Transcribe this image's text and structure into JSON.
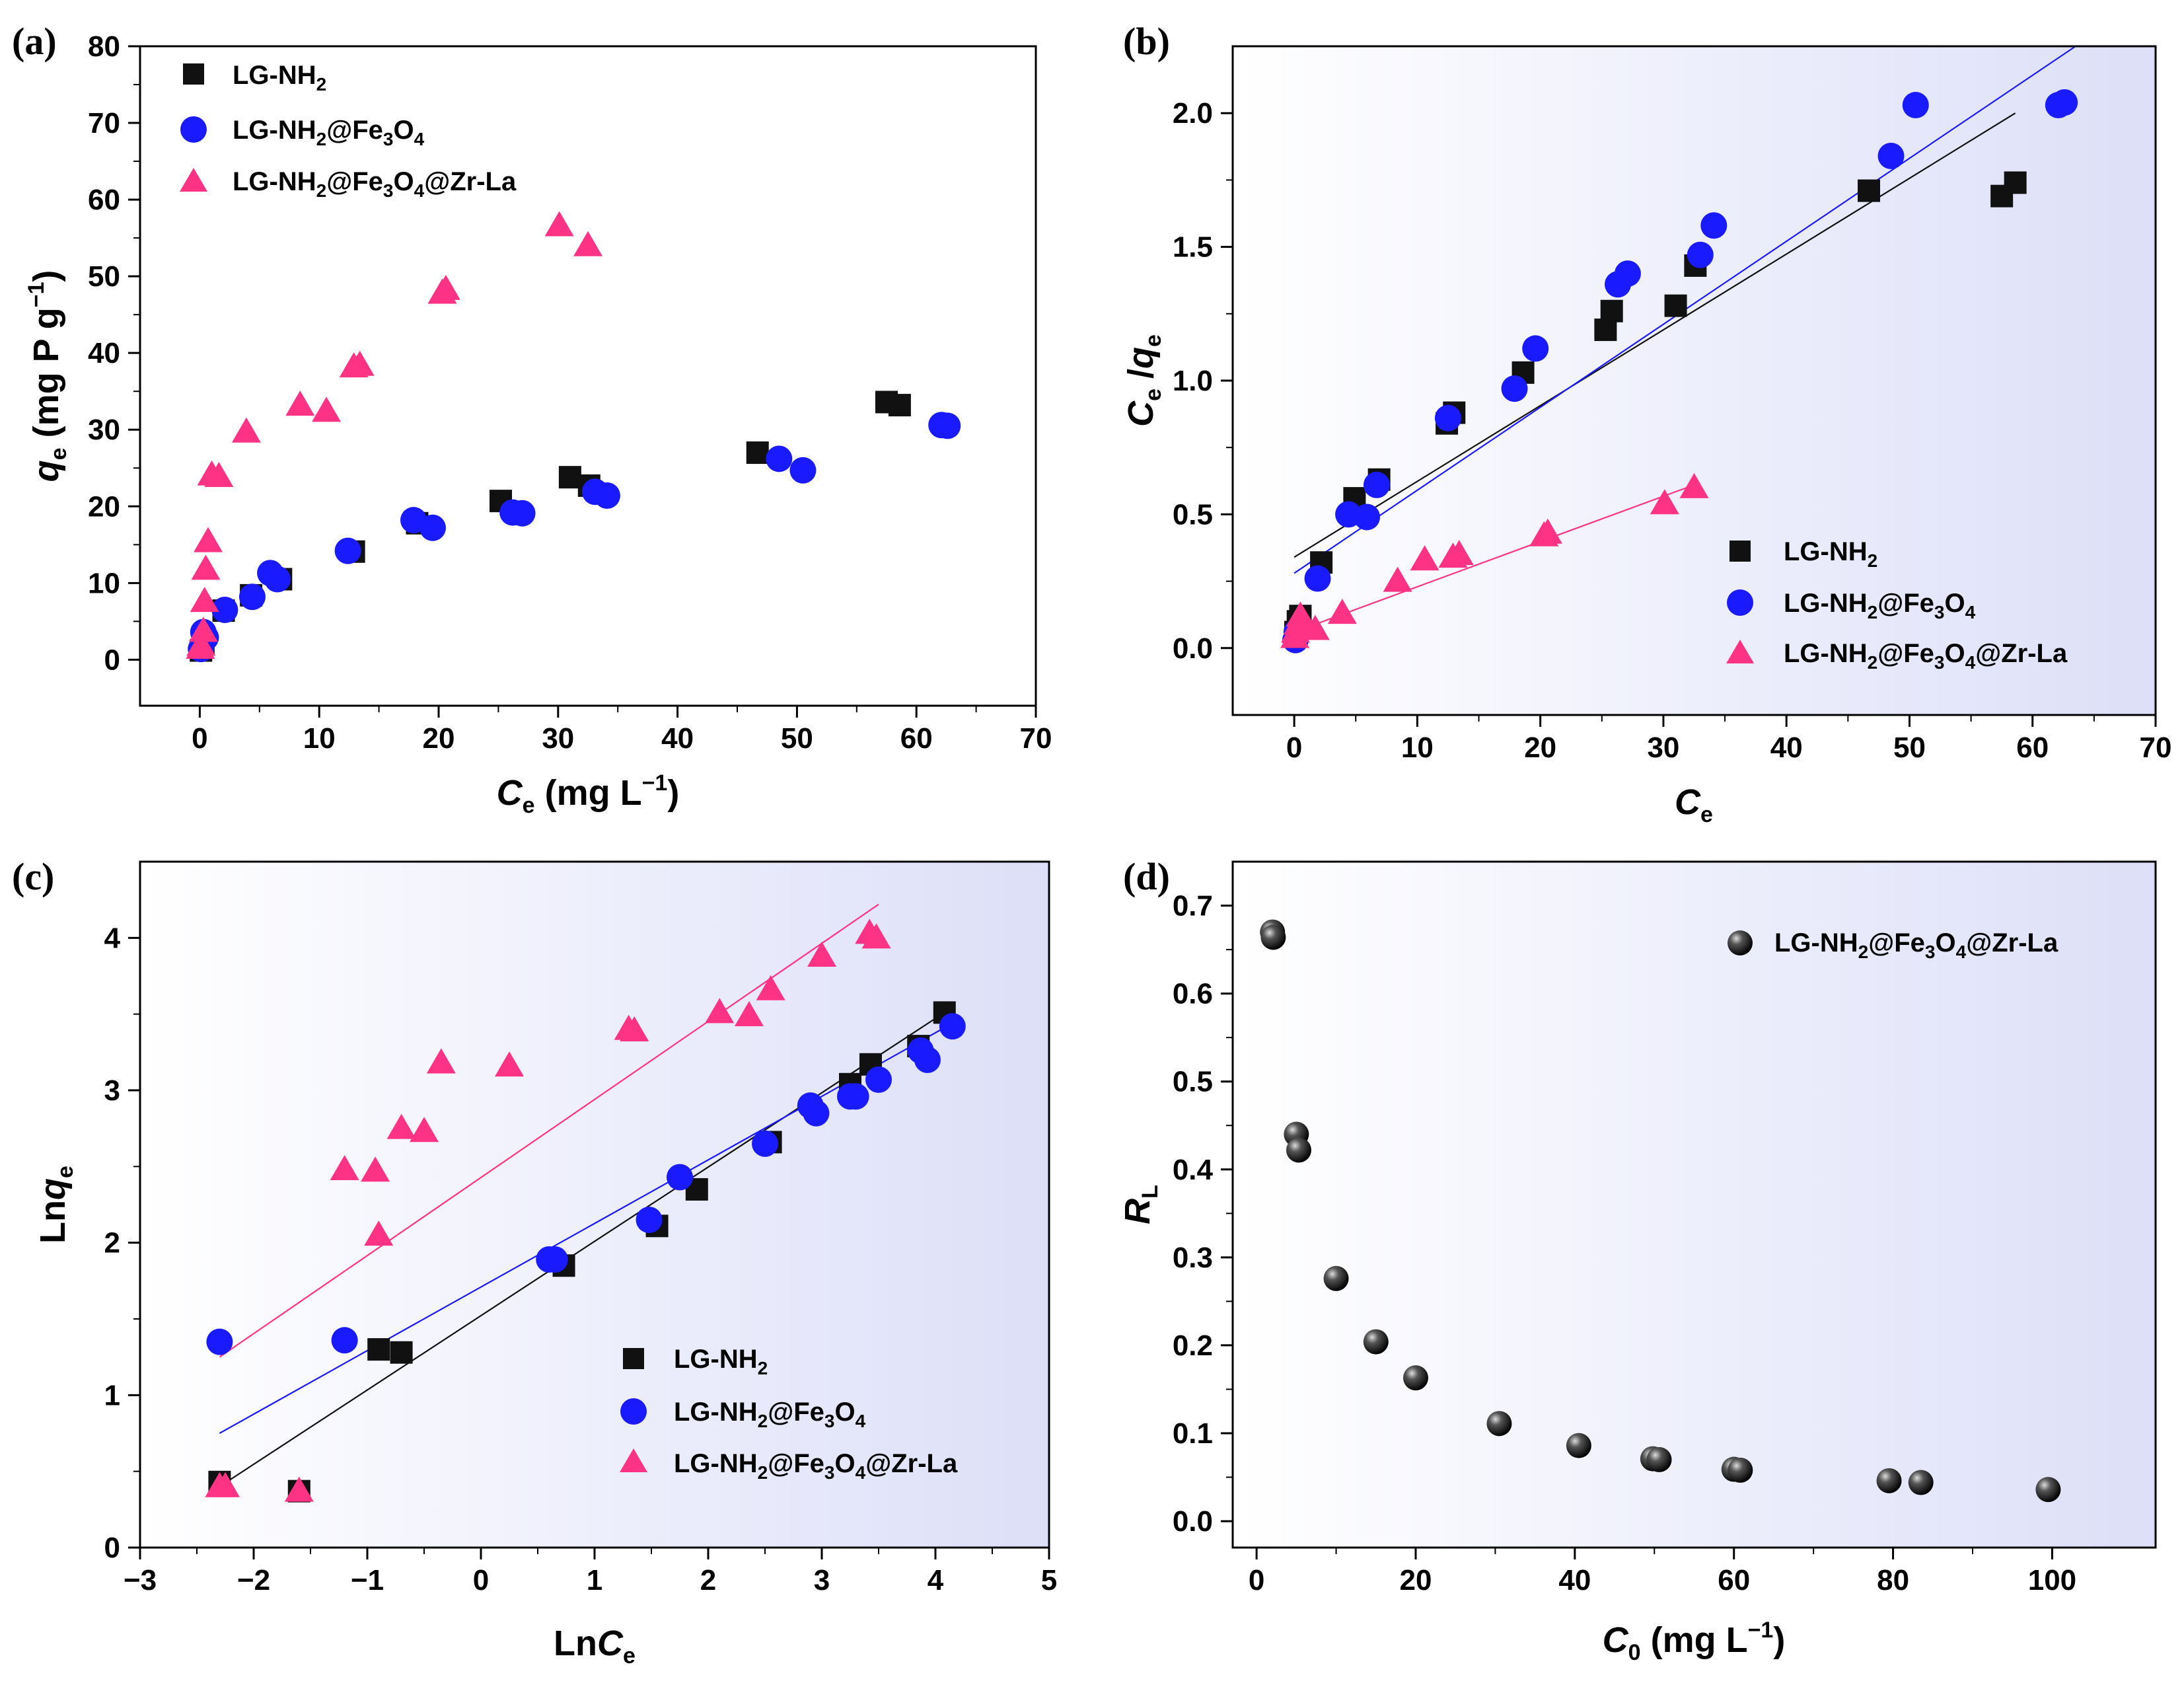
{
  "colors": {
    "series1": "#111111",
    "series2": "#1a1aff",
    "series3": "#ff3385",
    "panel_bg_start": "#ffffff",
    "panel_bg_end": "#dddff8"
  },
  "chart_data": [
    {
      "panel": "(a)",
      "type": "scatter",
      "title": "",
      "xlabel": "Ce (mg L−1)",
      "ylabel": "qe (mg P g−1)",
      "xlim": [
        -5,
        70
      ],
      "ylim": [
        -6,
        80
      ],
      "xticks": [
        0,
        10,
        20,
        30,
        40,
        50,
        60,
        70
      ],
      "yticks": [
        0,
        10,
        20,
        30,
        40,
        50,
        60,
        70,
        80
      ],
      "legend_position": "top-left",
      "legend": [
        "LG-NH2",
        "LG-NH2@Fe3O4",
        "LG-NH2@Fe3O4@Zr-La"
      ],
      "series": [
        {
          "name": "LG-NH2",
          "marker": "square",
          "x": [
            0.1,
            0.3,
            2.0,
            4.3,
            6.8,
            12.9,
            18.2,
            25.2,
            31.0,
            32.6,
            46.7,
            57.5,
            58.6
          ],
          "y": [
            1.2,
            2.0,
            6.4,
            8.4,
            10.5,
            14.1,
            17.8,
            20.7,
            23.8,
            22.7,
            27.0,
            33.6,
            33.2
          ]
        },
        {
          "name": "LG-NH2@Fe3O4",
          "marker": "circle",
          "x": [
            0.1,
            0.3,
            0.5,
            2.1,
            4.4,
            5.9,
            6.5,
            12.4,
            17.9,
            19.5,
            26.2,
            27.0,
            33.1,
            34.1,
            48.5,
            50.5,
            62.1,
            62.6
          ],
          "y": [
            1.4,
            3.6,
            2.9,
            6.5,
            8.2,
            11.3,
            10.5,
            14.2,
            18.2,
            17.2,
            19.2,
            19.1,
            21.9,
            21.4,
            26.2,
            24.7,
            30.6,
            30.5
          ]
        },
        {
          "name": "LG-NH2@Fe3O4@Zr-La",
          "marker": "triangle",
          "x": [
            0.05,
            0.1,
            0.3,
            0.4,
            0.5,
            0.7,
            1.0,
            1.6,
            3.9,
            8.4,
            10.6,
            12.9,
            13.4,
            20.3,
            20.6,
            30.1,
            32.5
          ],
          "y": [
            1.5,
            1.9,
            3.7,
            7.6,
            11.8,
            15.4,
            24.1,
            23.9,
            29.7,
            33.2,
            32.4,
            38.2,
            38.4,
            47.8,
            48.3,
            56.6,
            54.0
          ]
        }
      ]
    },
    {
      "panel": "(b)",
      "type": "scatter",
      "title": "",
      "xlabel": "Ce",
      "ylabel": "Ce/qe",
      "xlim": [
        -5,
        70
      ],
      "ylim": [
        -0.25,
        2.25
      ],
      "xticks": [
        0,
        10,
        20,
        30,
        40,
        50,
        60,
        70
      ],
      "yticks": [
        0.0,
        0.5,
        1.0,
        1.5,
        2.0
      ],
      "ytick_labels": [
        "0.0",
        "0.5",
        "1.0",
        "1.5",
        "2.0"
      ],
      "legend_position": "bottom-right",
      "legend": [
        "LG-NH2",
        "LG-NH2@Fe3O4",
        "LG-NH2@Fe3O4@Zr-La"
      ],
      "series": [
        {
          "name": "LG-NH2",
          "marker": "square",
          "x": [
            0.1,
            0.3,
            0.5,
            2.2,
            4.9,
            6.9,
            12.4,
            13.0,
            18.6,
            25.3,
            25.8,
            31.0,
            32.6,
            46.7,
            57.5,
            58.6
          ],
          "y": [
            0.06,
            0.1,
            0.12,
            0.32,
            0.56,
            0.63,
            0.84,
            0.88,
            1.03,
            1.19,
            1.26,
            1.28,
            1.43,
            1.71,
            1.69,
            1.74
          ]
        },
        {
          "name": "LG-NH2@Fe3O4",
          "marker": "circle",
          "x": [
            0.1,
            0.2,
            1.9,
            4.4,
            5.9,
            6.7,
            12.5,
            17.9,
            19.6,
            26.3,
            27.1,
            33.0,
            34.1,
            48.5,
            50.5,
            62.1,
            62.6
          ],
          "y": [
            0.03,
            0.06,
            0.26,
            0.5,
            0.49,
            0.61,
            0.86,
            0.97,
            1.12,
            1.36,
            1.4,
            1.47,
            1.58,
            1.84,
            2.03,
            2.03,
            2.04
          ]
        },
        {
          "name": "LG-NH2@Fe3O4@Zr-La",
          "marker": "triangle",
          "x": [
            0.05,
            0.1,
            0.3,
            0.5,
            1.0,
            1.7,
            3.9,
            8.4,
            10.6,
            12.9,
            13.4,
            20.3,
            20.6,
            30.1,
            32.5
          ],
          "y": [
            0.04,
            0.06,
            0.09,
            0.12,
            0.08,
            0.07,
            0.13,
            0.25,
            0.33,
            0.34,
            0.35,
            0.42,
            0.43,
            0.54,
            0.6
          ]
        }
      ],
      "fit_lines": [
        {
          "series": "LG-NH2",
          "x": [
            0,
            58.6
          ],
          "y": [
            0.34,
            2.0
          ]
        },
        {
          "series": "LG-NH2@Fe3O4",
          "x": [
            0,
            63.5
          ],
          "y": [
            0.28,
            2.25
          ]
        },
        {
          "series": "LG-NH2@Fe3O4@Zr-La",
          "x": [
            0,
            32.5
          ],
          "y": [
            0.06,
            0.61
          ]
        }
      ]
    },
    {
      "panel": "(c)",
      "type": "scatter",
      "title": "",
      "xlabel": "LnCe",
      "ylabel": "Lnqe",
      "xlim": [
        -3,
        5
      ],
      "ylim": [
        0,
        4.5
      ],
      "xticks": [
        -3,
        -2,
        -1,
        0,
        1,
        2,
        3,
        4,
        5
      ],
      "xtick_labels": [
        "−3",
        "−2",
        "−1",
        "0",
        "1",
        "2",
        "3",
        "4",
        "5"
      ],
      "yticks": [
        0,
        1,
        2,
        3,
        4
      ],
      "legend_position": "bottom-right",
      "legend": [
        "LG-NH2",
        "LG-NH2@Fe3O4",
        "LG-NH2@Fe3O4@Zr-La"
      ],
      "series": [
        {
          "name": "LG-NH2",
          "marker": "square",
          "x": [
            -2.3,
            -1.6,
            -0.9,
            -0.7,
            0.73,
            1.55,
            1.9,
            2.55,
            3.25,
            3.43,
            3.85,
            4.08
          ],
          "y": [
            0.43,
            0.37,
            1.3,
            1.28,
            1.85,
            2.11,
            2.35,
            2.66,
            3.04,
            3.17,
            3.29,
            3.51
          ]
        },
        {
          "name": "LG-NH2@Fe3O4",
          "marker": "circle",
          "x": [
            -2.3,
            -1.2,
            0.6,
            0.65,
            1.48,
            1.75,
            2.5,
            2.9,
            2.95,
            3.25,
            3.3,
            3.5,
            3.87,
            3.93,
            4.15
          ],
          "y": [
            1.35,
            1.36,
            1.89,
            1.89,
            2.15,
            2.43,
            2.65,
            2.9,
            2.85,
            2.96,
            2.96,
            3.07,
            3.26,
            3.2,
            3.42
          ]
        },
        {
          "name": "LG-NH2@Fe3O4@Zr-La",
          "marker": "triangle",
          "x": [
            -2.3,
            -2.25,
            -1.6,
            -1.2,
            -0.93,
            -0.9,
            -0.7,
            -0.5,
            -0.35,
            0.25,
            1.3,
            1.35,
            2.1,
            2.36,
            2.55,
            3.0,
            3.42,
            3.48
          ],
          "y": [
            0.4,
            0.4,
            0.37,
            2.48,
            2.47,
            2.05,
            2.75,
            2.73,
            3.18,
            3.16,
            3.4,
            3.39,
            3.51,
            3.49,
            3.66,
            3.88,
            4.03,
            4.0
          ]
        }
      ],
      "fit_lines": [
        {
          "series": "LG-NH2",
          "x": [
            -2.3,
            4.1
          ],
          "y": [
            0.4,
            3.52
          ]
        },
        {
          "series": "LG-NH2@Fe3O4",
          "x": [
            -2.3,
            4.15
          ],
          "y": [
            0.75,
            3.44
          ]
        },
        {
          "series": "LG-NH2@Fe3O4@Zr-La",
          "x": [
            -2.3,
            3.5
          ],
          "y": [
            1.25,
            4.22
          ]
        }
      ]
    },
    {
      "panel": "(d)",
      "type": "scatter",
      "title": "",
      "xlabel": "C0 (mg L−1)",
      "ylabel": "RL",
      "xlim": [
        -3,
        113
      ],
      "ylim": [
        -0.03,
        0.75
      ],
      "xticks": [
        0,
        20,
        40,
        60,
        80,
        100
      ],
      "yticks": [
        0.0,
        0.1,
        0.2,
        0.3,
        0.4,
        0.5,
        0.6,
        0.7
      ],
      "ytick_labels": [
        "0.0",
        "0.1",
        "0.2",
        "0.3",
        "0.4",
        "0.5",
        "0.6",
        "0.7"
      ],
      "legend_position": "top-right",
      "legend": [
        "LG-NH2@Fe3O4@Zr-La"
      ],
      "series": [
        {
          "name": "LG-NH2@Fe3O4@Zr-La",
          "marker": "sphere",
          "x": [
            2.0,
            2.1,
            5.0,
            5.3,
            10.0,
            15.0,
            20.0,
            30.5,
            40.5,
            49.8,
            50.6,
            60.0,
            60.8,
            79.5,
            83.5,
            99.5
          ],
          "y": [
            0.67,
            0.664,
            0.44,
            0.422,
            0.276,
            0.204,
            0.163,
            0.111,
            0.086,
            0.071,
            0.07,
            0.059,
            0.058,
            0.046,
            0.044,
            0.036
          ]
        }
      ]
    }
  ]
}
